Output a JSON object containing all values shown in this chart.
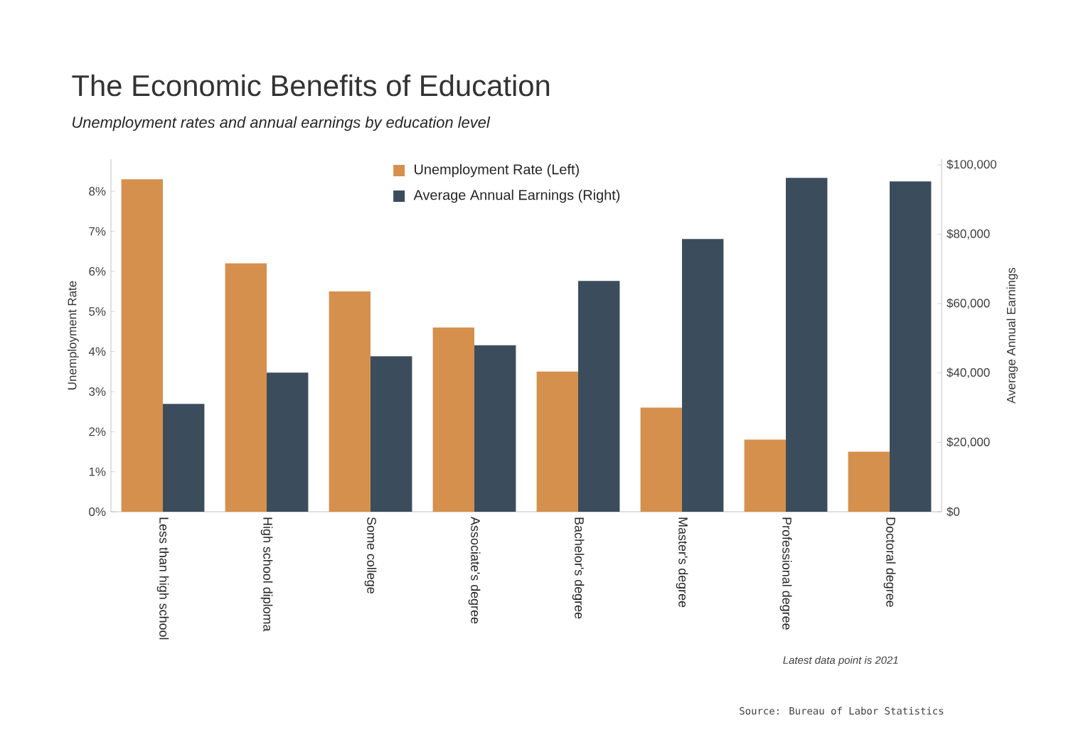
{
  "chart_data": {
    "type": "bar",
    "title": "The Economic Benefits of Education",
    "subtitle": "Unemployment rates and annual earnings by education level",
    "ylabel": "Unemployment Rate",
    "y2label": "Average Annual Earnings",
    "categories": [
      "Less than high school",
      "High school diploma",
      "Some college",
      "Associate's degree",
      "Bachelor's degree",
      "Master's degree",
      "Professional degree",
      "Doctoral degree"
    ],
    "series": [
      {
        "name": "Unemployment Rate (Left)",
        "color": "#d4904c",
        "values": [
          8.3,
          6.2,
          5.5,
          4.6,
          3.5,
          2.6,
          1.8,
          1.5
        ]
      },
      {
        "name": "Average Annual Earnings (Right)",
        "color": "#3b4d5c",
        "axis": "y2",
        "values": [
          31100,
          40100,
          44800,
          48000,
          66500,
          78600,
          96200,
          95200
        ]
      }
    ],
    "ylim": [
      0,
      8.8
    ],
    "yticks": [
      {
        "value": 0,
        "label": "0%"
      },
      {
        "value": 1,
        "label": "1%"
      },
      {
        "value": 2,
        "label": "2%"
      },
      {
        "value": 3,
        "label": "3%"
      },
      {
        "value": 4,
        "label": "4%"
      },
      {
        "value": 5,
        "label": "5%"
      },
      {
        "value": 6,
        "label": "6%"
      },
      {
        "value": 7,
        "label": "7%"
      },
      {
        "value": 8,
        "label": "8%"
      }
    ],
    "y2lim": [
      0,
      101600
    ],
    "y2ticks": [
      {
        "value": 0,
        "label": "$0"
      },
      {
        "value": 20000,
        "label": "$20,000"
      },
      {
        "value": 40000,
        "label": "$40,000"
      },
      {
        "value": 60000,
        "label": "$60,000"
      },
      {
        "value": 80000,
        "label": "$80,000"
      },
      {
        "value": 100000,
        "label": "$100,000"
      }
    ],
    "legend": "top",
    "annotations": [
      "Latest data point is 2021",
      "Source: Bureau of Labor Statistics"
    ]
  }
}
